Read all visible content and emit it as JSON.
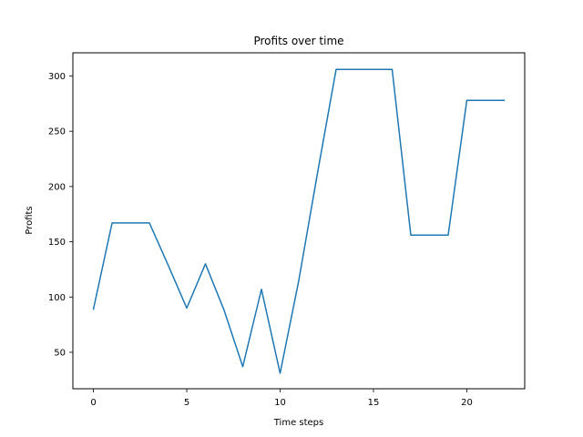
{
  "chart_data": {
    "type": "line",
    "title": "Profits over time",
    "xlabel": "Time steps",
    "ylabel": "Profits",
    "xlim": [
      -1.1,
      23.1
    ],
    "ylim": [
      17,
      321
    ],
    "xticks": [
      0,
      5,
      10,
      15,
      20
    ],
    "yticks": [
      50,
      100,
      150,
      200,
      250,
      300
    ],
    "grid": false,
    "series": [
      {
        "color": "#1f77b4",
        "x": [
          0,
          1,
          2,
          3,
          4,
          5,
          6,
          7,
          8,
          9,
          10,
          11,
          12,
          13,
          14,
          15,
          16,
          17,
          18,
          19,
          20,
          21,
          22
        ],
        "values": [
          89,
          167,
          167,
          167,
          129,
          90,
          130,
          88,
          37,
          107,
          31,
          115,
          212,
          306,
          306,
          306,
          306,
          156,
          156,
          156,
          278,
          278,
          278
        ]
      }
    ]
  }
}
